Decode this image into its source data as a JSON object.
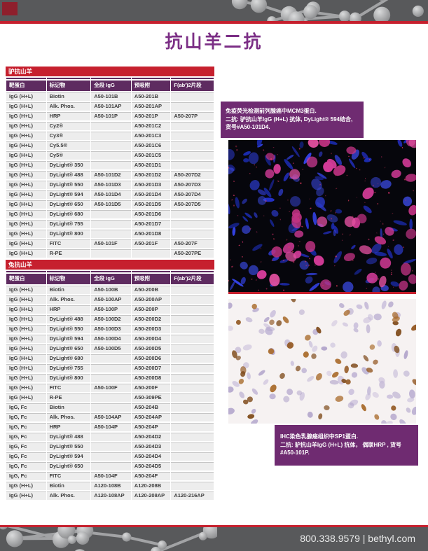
{
  "page": {
    "title": "抗山羊二抗"
  },
  "colors": {
    "accent": "#c6202e",
    "title": "#7b2e85",
    "thead": "#5e2b60",
    "capbox": "#6f2b71",
    "banner": "#58595b"
  },
  "tables": [
    {
      "section_title": "驴抗山羊",
      "columns": [
        "靶蛋白",
        "标记物",
        "全段 IgG",
        "预吸附",
        "F(ab')2片段"
      ],
      "rows": [
        [
          "IgG (H+L)",
          "Biotin",
          "A50-101B",
          "A50-201B",
          ""
        ],
        [
          "IgG (H+L)",
          "Alk. Phos.",
          "A50-101AP",
          "A50-201AP",
          ""
        ],
        [
          "IgG (H+L)",
          "HRP",
          "A50-101P",
          "A50-201P",
          "A50-207P"
        ],
        [
          "IgG (H+L)",
          "Cy2®",
          "",
          "A50-201C2",
          ""
        ],
        [
          "IgG (H+L)",
          "Cy3®",
          "",
          "A50-201C3",
          ""
        ],
        [
          "IgG (H+L)",
          "Cy5.5®",
          "",
          "A50-201C6",
          ""
        ],
        [
          "IgG (H+L)",
          "Cy5®",
          "",
          "A50-201C5",
          ""
        ],
        [
          "IgG (H+L)",
          "DyLight® 350",
          "",
          "A50-201D1",
          ""
        ],
        [
          "IgG (H+L)",
          "DyLight® 488",
          "A50-101D2",
          "A50-201D2",
          "A50-207D2"
        ],
        [
          "IgG (H+L)",
          "DyLight® 550",
          "A50-101D3",
          "A50-201D3",
          "A50-207D3"
        ],
        [
          "IgG (H+L)",
          "DyLight® 594",
          "A50-101D4",
          "A50-201D4",
          "A50-207D4"
        ],
        [
          "IgG (H+L)",
          "DyLight® 650",
          "A50-101D5",
          "A50-201D5",
          "A50-207D5"
        ],
        [
          "IgG (H+L)",
          "DyLight® 680",
          "",
          "A50-201D6",
          ""
        ],
        [
          "IgG (H+L)",
          "DyLight® 755",
          "",
          "A50-201D7",
          ""
        ],
        [
          "IgG (H+L)",
          "DyLight® 800",
          "",
          "A50-201D8",
          ""
        ],
        [
          "IgG (H+L)",
          "FITC",
          "A50-101F",
          "A50-201F",
          "A50-207F"
        ],
        [
          "IgG (H+L)",
          "R-PE",
          "",
          "",
          "A50-207PE"
        ]
      ]
    },
    {
      "section_title": "兔抗山羊",
      "columns": [
        "靶蛋白",
        "标记物",
        "全段 IgG",
        "预吸附",
        "F(ab')2片段"
      ],
      "rows": [
        [
          "IgG (H+L)",
          "Biotin",
          "A50-100B",
          "A50-200B",
          ""
        ],
        [
          "IgG (H+L)",
          "Alk. Phos.",
          "A50-100AP",
          "A50-200AP",
          ""
        ],
        [
          "IgG (H+L)",
          "HRP",
          "A50-100P",
          "A50-200P",
          ""
        ],
        [
          "IgG (H+L)",
          "DyLight® 488",
          "A50-100D2",
          "A50-200D2",
          ""
        ],
        [
          "IgG (H+L)",
          "DyLight® 550",
          "A50-100D3",
          "A50-200D3",
          ""
        ],
        [
          "IgG (H+L)",
          "DyLight® 594",
          "A50-100D4",
          "A50-200D4",
          ""
        ],
        [
          "IgG (H+L)",
          "DyLight® 650",
          "A50-100D5",
          "A50-200D5",
          ""
        ],
        [
          "IgG (H+L)",
          "DyLight® 680",
          "",
          "A50-200D6",
          ""
        ],
        [
          "IgG (H+L)",
          "DyLight® 755",
          "",
          "A50-200D7",
          ""
        ],
        [
          "IgG (H+L)",
          "DyLight® 800",
          "",
          "A50-200D8",
          ""
        ],
        [
          "IgG (H+L)",
          "FITC",
          "A50-100F",
          "A50-200F",
          ""
        ],
        [
          "IgG (H+L)",
          "R-PE",
          "",
          "A50-309PE",
          ""
        ],
        [
          "IgG, Fc",
          "Biotin",
          "",
          "A50-204B",
          ""
        ],
        [
          "IgG, Fc",
          "Alk. Phos.",
          "A50-104AP",
          "A50-204AP",
          ""
        ],
        [
          "IgG, Fc",
          "HRP",
          "A50-104P",
          "A50-204P",
          ""
        ],
        [
          "IgG, Fc",
          "DyLight® 488",
          "",
          "A50-204D2",
          ""
        ],
        [
          "IgG, Fc",
          "DyLight® 550",
          "",
          "A50-204D3",
          ""
        ],
        [
          "IgG, Fc",
          "DyLight® 594",
          "",
          "A50-204D4",
          ""
        ],
        [
          "IgG, Fc",
          "DyLight® 650",
          "",
          "A50-204D5",
          ""
        ],
        [
          "IgG, Fc",
          "FITC",
          "A50-104F",
          "A50-204F",
          ""
        ],
        [
          "IgG (H+L)",
          "Biotin",
          "A120-108B",
          "A120-208B",
          ""
        ],
        [
          "IgG (H+L)",
          "Alk. Phos.",
          "A120-108AP",
          "A120-208AP",
          "A120-216AP"
        ]
      ]
    }
  ],
  "figures": [
    {
      "caption_lines": [
        "免疫荧光检测前列腺癌中MCM3蛋白.",
        "二抗: 驴抗山羊IgG (H+L) 抗体, DyLight® 594结合,",
        "货号#A50-101D4."
      ]
    },
    {
      "caption_lines": [
        "IHC染色乳腺癌组织中SP1蛋白.",
        "二抗: 驴抗山羊IgG (H+L) 抗体， 偶联HRP , 货号#A50-101P."
      ]
    }
  ],
  "footer": {
    "contact": "800.338.9579 | bethyl.com"
  }
}
